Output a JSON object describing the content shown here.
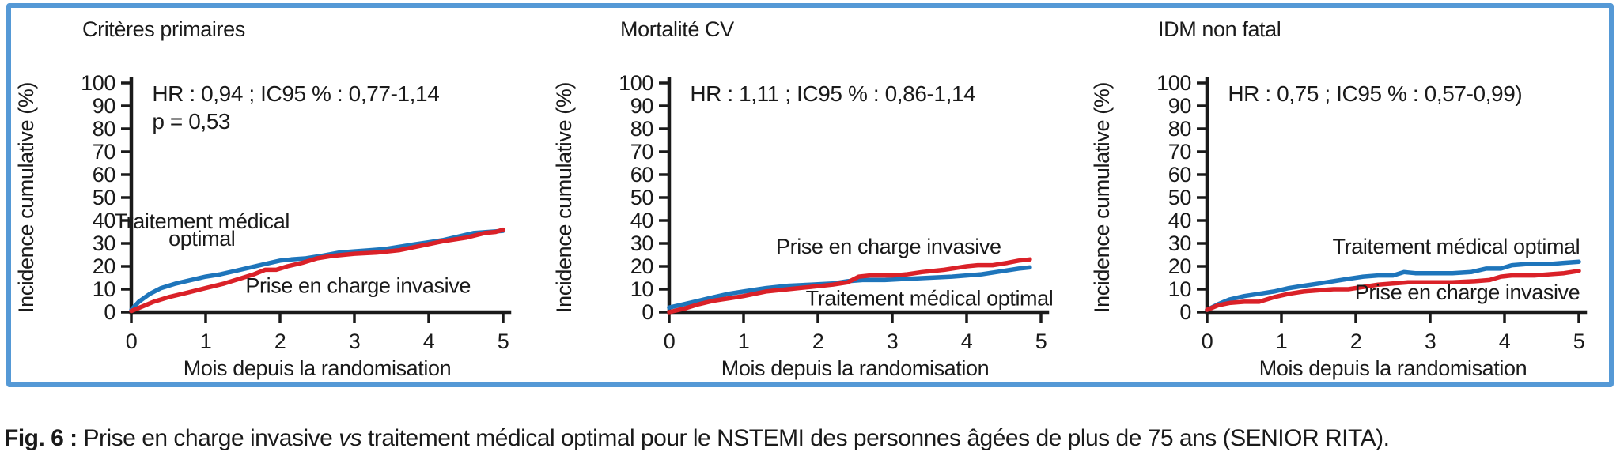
{
  "figure": {
    "border_color": "#5599D6",
    "caption": {
      "label": "Fig. 6 :",
      "text_before_vs": " Prise en charge invasive ",
      "vs": "vs",
      "text_after_vs": " traitement médical optimal pour le NSTEMI des personnes âgées de plus de 75 ans (SENIOR RITA)."
    }
  },
  "colors": {
    "medical_blue": "#1E75BB",
    "invasive_red": "#DA2128",
    "axis_black": "#1A1A1A"
  },
  "chart_data": [
    {
      "type": "line",
      "title": "Critères primaires",
      "stats": [
        "HR : 0,94 ; IC95 % : 0,77-1,14",
        "p = 0,53"
      ],
      "xlabel": "Mois depuis la randomisation",
      "ylabel": "Incidence cumulative (%)",
      "xlim": [
        0,
        5
      ],
      "ylim": [
        0,
        100
      ],
      "xticks": [
        0,
        1,
        2,
        3,
        4,
        5
      ],
      "yticks": [
        0,
        10,
        20,
        30,
        40,
        50,
        60,
        70,
        80,
        90,
        100
      ],
      "grid": false,
      "legend_position": "inline-labels",
      "series": [
        {
          "name": "Traitement médical optimal",
          "color": "#1E75BB",
          "x": [
            0,
            0.1,
            0.25,
            0.4,
            0.6,
            0.8,
            1.0,
            1.2,
            1.4,
            1.6,
            1.8,
            2.0,
            2.15,
            2.35,
            2.55,
            2.8,
            3.0,
            3.2,
            3.4,
            3.6,
            3.8,
            4.0,
            4.2,
            4.4,
            4.6,
            4.8,
            5.0
          ],
          "y": [
            1,
            4.5,
            8,
            10.5,
            12.5,
            14,
            15.5,
            16.5,
            18,
            19.5,
            21,
            22.5,
            23,
            23.5,
            24.5,
            26,
            26.5,
            27,
            27.5,
            28.5,
            29.5,
            30.5,
            31.5,
            33,
            34.5,
            35,
            35.5
          ]
        },
        {
          "name": "Prise en charge invasive",
          "color": "#DA2128",
          "x": [
            0,
            0.15,
            0.3,
            0.5,
            0.75,
            1.0,
            1.25,
            1.5,
            1.65,
            1.8,
            1.95,
            2.1,
            2.3,
            2.5,
            2.7,
            3.0,
            3.3,
            3.6,
            3.9,
            4.2,
            4.5,
            4.75,
            4.9,
            5.0
          ],
          "y": [
            0.5,
            2.5,
            4.5,
            6.5,
            8.5,
            10.5,
            12.5,
            15,
            16.5,
            18.5,
            18.5,
            20,
            21.5,
            23.5,
            24.5,
            25.5,
            26,
            27,
            29,
            31,
            32.5,
            34.5,
            35,
            36
          ]
        }
      ],
      "series_labels": [
        {
          "text": "Traitement médical",
          "x": 0.95,
          "y": 36.5
        },
        {
          "text": "optimal",
          "x": 0.95,
          "y": 29
        },
        {
          "text": "Prise en charge invasive",
          "x": 3.05,
          "y": 8.5
        }
      ]
    },
    {
      "type": "line",
      "title": "Mortalité CV",
      "stats": [
        "HR : 1,11 ; IC95 % : 0,86-1,14"
      ],
      "xlabel": "Mois depuis la randomisation",
      "ylabel": "Incidence cumulative (%)",
      "xlim": [
        0,
        5
      ],
      "ylim": [
        0,
        100
      ],
      "xticks": [
        0,
        1,
        2,
        3,
        4,
        5
      ],
      "yticks": [
        0,
        10,
        20,
        30,
        40,
        50,
        60,
        70,
        80,
        90,
        100
      ],
      "grid": false,
      "legend_position": "inline-labels",
      "series": [
        {
          "name": "Traitement médical optimal",
          "color": "#1E75BB",
          "x": [
            0,
            0.2,
            0.4,
            0.6,
            0.8,
            1.0,
            1.3,
            1.6,
            1.9,
            2.2,
            2.4,
            2.6,
            2.9,
            3.2,
            3.5,
            3.8,
            4.0,
            4.2,
            4.5,
            4.7,
            4.85
          ],
          "y": [
            2,
            3.5,
            5,
            6.5,
            8,
            9,
            10.5,
            11.5,
            12,
            12.5,
            13.5,
            14,
            14,
            14.5,
            15,
            15.5,
            16,
            16.5,
            18,
            19,
            19.5
          ]
        },
        {
          "name": "Prise en charge invasive",
          "color": "#DA2128",
          "x": [
            0,
            0.2,
            0.4,
            0.6,
            0.8,
            1.0,
            1.3,
            1.6,
            1.9,
            2.2,
            2.4,
            2.55,
            2.7,
            3.0,
            3.2,
            3.4,
            3.7,
            4.0,
            4.15,
            4.35,
            4.55,
            4.7,
            4.85
          ],
          "y": [
            0,
            1.5,
            3.5,
            5,
            6,
            7,
            9,
            10,
            11,
            12,
            13,
            15.5,
            16,
            16,
            16.5,
            17.5,
            18.5,
            20,
            20.5,
            20.5,
            21.5,
            22.5,
            23
          ]
        }
      ],
      "series_labels": [
        {
          "text": "Prise en charge invasive",
          "x": 2.95,
          "y": 25.5
        },
        {
          "text": "Traitement médical optimal",
          "x": 3.5,
          "y": 3
        }
      ]
    },
    {
      "type": "line",
      "title": "IDM non fatal",
      "stats": [
        "HR : 0,75 ; IC95 % : 0,57-0,99)"
      ],
      "xlabel": "Mois depuis la randomisation",
      "ylabel": "Incidence cumulative (%)",
      "xlim": [
        0,
        5
      ],
      "ylim": [
        0,
        100
      ],
      "xticks": [
        0,
        1,
        2,
        3,
        4,
        5
      ],
      "yticks": [
        0,
        10,
        20,
        30,
        40,
        50,
        60,
        70,
        80,
        90,
        100
      ],
      "grid": false,
      "legend_position": "inline-labels",
      "series": [
        {
          "name": "Traitement médical optimal",
          "color": "#1E75BB",
          "x": [
            0,
            0.15,
            0.3,
            0.5,
            0.7,
            0.9,
            1.1,
            1.3,
            1.5,
            1.7,
            1.9,
            2.1,
            2.3,
            2.5,
            2.65,
            2.8,
            3.0,
            3.3,
            3.55,
            3.75,
            3.95,
            4.1,
            4.3,
            4.6,
            4.8,
            5.0
          ],
          "y": [
            1,
            3.5,
            5.5,
            7,
            8,
            9,
            10.5,
            11.5,
            12.5,
            13.5,
            14.5,
            15.5,
            16,
            16,
            17.5,
            17,
            17,
            17,
            17.5,
            19,
            19,
            20.5,
            21,
            21,
            21.5,
            22
          ]
        },
        {
          "name": "Prise en charge invasive",
          "color": "#DA2128",
          "x": [
            0,
            0.15,
            0.3,
            0.5,
            0.7,
            0.9,
            1.1,
            1.3,
            1.5,
            1.7,
            1.9,
            2.1,
            2.3,
            2.5,
            2.7,
            3.0,
            3.3,
            3.6,
            3.8,
            3.95,
            4.1,
            4.4,
            4.6,
            4.8,
            5.0
          ],
          "y": [
            1,
            3,
            4,
            4.5,
            4.5,
            6.5,
            8,
            9,
            9.5,
            10,
            10,
            11,
            12,
            12.5,
            13,
            13,
            13,
            13.5,
            14,
            15.5,
            16,
            16,
            16.5,
            17,
            18
          ]
        }
      ],
      "series_labels": [
        {
          "text": "Traitement médical optimal",
          "x": 3.35,
          "y": 25.5
        },
        {
          "text": "Prise en charge invasive",
          "x": 3.5,
          "y": 5.5
        }
      ]
    }
  ]
}
